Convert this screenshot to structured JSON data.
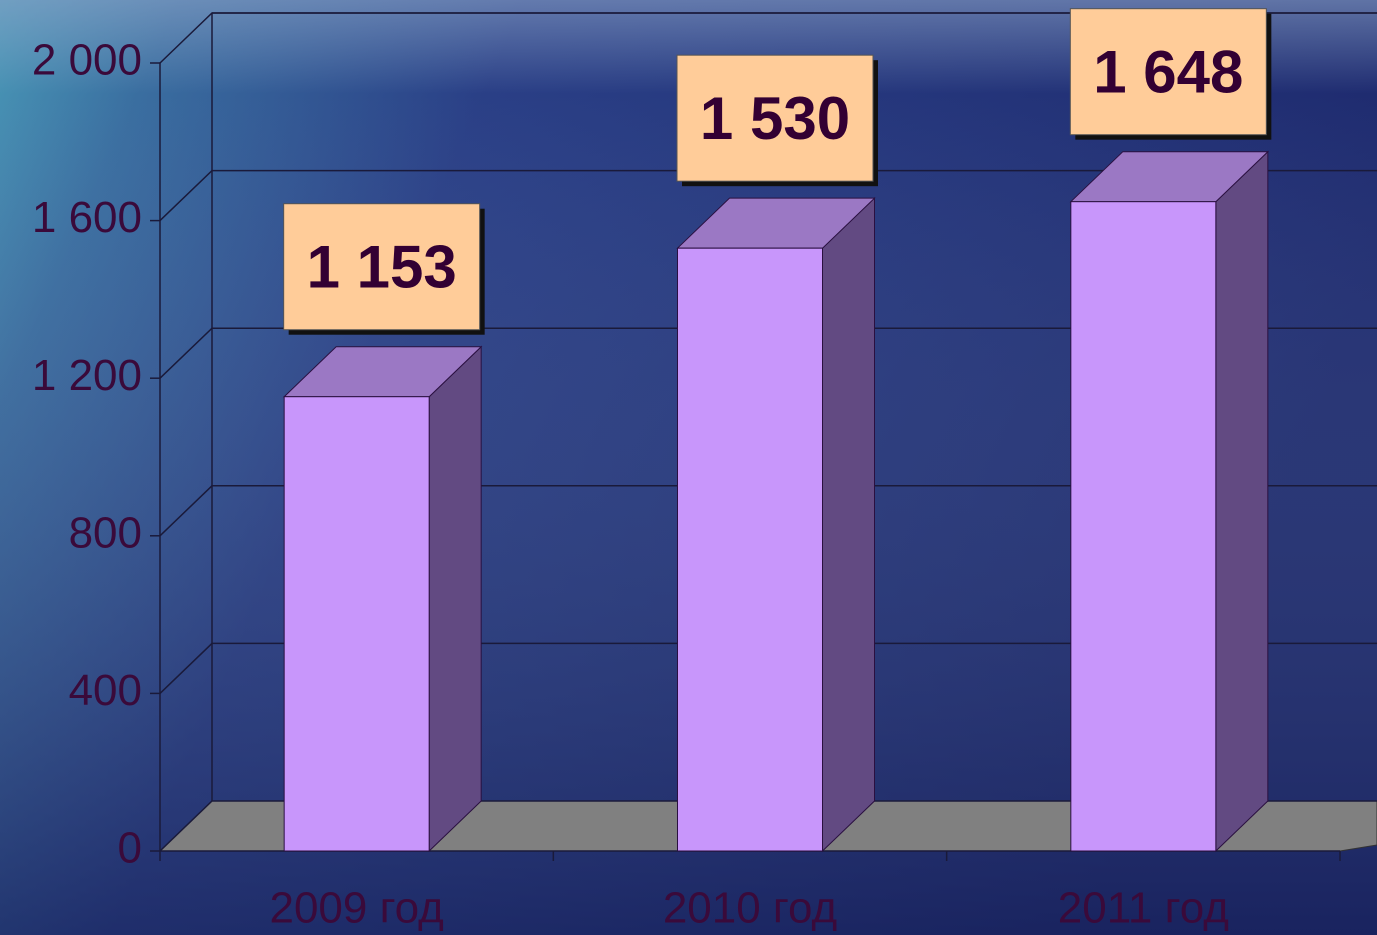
{
  "chart_data": {
    "type": "bar3d",
    "categories": [
      "2009 год",
      "2010 год",
      "2011 год"
    ],
    "values": [
      1153,
      1530,
      1648
    ],
    "value_labels": [
      "1 153",
      "1 530",
      "1 648"
    ],
    "color": "#c896fb",
    "ylim": [
      0,
      2000
    ],
    "yticks": [
      0,
      400,
      800,
      {
        "value": 1200,
        "label": "1 200"
      },
      {
        "value": 1600,
        "label": "1 600"
      },
      {
        "value": 2000,
        "label": "2 000"
      }
    ],
    "grid": true
  }
}
